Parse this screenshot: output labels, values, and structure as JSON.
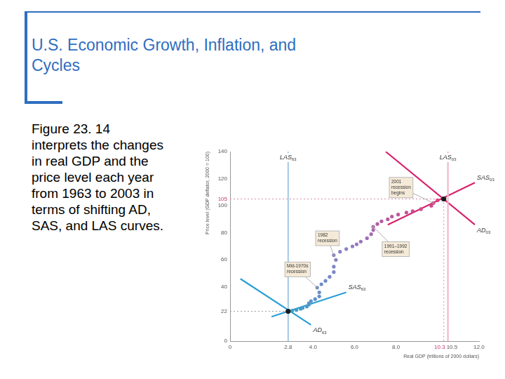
{
  "slide": {
    "title": "U.S. Economic Growth, Inflation, and Cycles",
    "body": "Figure 23. 14 interprets the changes in real GDP and the price level each year from 1963 to 2003 in terms of shifting AD, SAS, and LAS curves."
  },
  "chart_data": {
    "type": "scatter",
    "xlabel": "Real GDP (trillions of 2000 dollars)",
    "ylabel": "Price level (GDP deflator, 2000 = 100)",
    "xlim": [
      0,
      12
    ],
    "xticks": [
      0,
      2.8,
      {
        "value": 4,
        "label": "4.0"
      },
      {
        "value": 6,
        "label": "6.0"
      },
      {
        "value": 8,
        "label": "8.0"
      },
      10.3,
      10.5,
      {
        "value": 12,
        "label": "12.0"
      }
    ],
    "ylim": [
      0,
      140
    ],
    "yticks": [
      0,
      22,
      40,
      60,
      80,
      100,
      105,
      120,
      140
    ],
    "grid": false,
    "series": [
      {
        "name": "LAS63",
        "type": "line",
        "color": "#a9cde8",
        "x": [
          2.8,
          2.8
        ],
        "values": [
          0,
          140
        ]
      },
      {
        "name": "LAS03",
        "type": "line",
        "color": "#f2b6cc",
        "x": [
          10.5,
          10.5
        ],
        "values": [
          0,
          140
        ]
      },
      {
        "name": "AD63",
        "type": "line",
        "color": "#2a9fd6",
        "x": [
          0.5,
          3.9
        ],
        "values": [
          46,
          12
        ]
      },
      {
        "name": "SAS63",
        "type": "line",
        "color": "#2a9fd6",
        "x": [
          2.0,
          5.6
        ],
        "values": [
          18,
          36
        ]
      },
      {
        "name": "AD03",
        "type": "line",
        "color": "#d6246e",
        "x": [
          7.5,
          11.8
        ],
        "values": [
          140,
          86
        ]
      },
      {
        "name": "SAS03",
        "type": "line",
        "color": "#d6246e",
        "x": [
          7.6,
          11.8
        ],
        "values": [
          86,
          117
        ]
      },
      {
        "type": "scatter",
        "marker": "circle",
        "x": [
          2.8,
          3.0,
          3.2,
          3.4,
          3.5,
          3.7,
          3.8,
          3.8,
          3.9,
          4.1,
          4.3,
          4.3,
          4.2,
          4.4,
          4.6,
          4.8,
          5.0,
          5.0,
          5.1,
          5.0,
          5.3,
          5.6,
          5.9,
          6.1,
          6.3,
          6.6,
          6.8,
          6.9,
          6.9,
          7.1,
          7.3,
          7.6,
          7.8,
          8.1,
          8.5,
          8.8,
          9.2,
          9.7,
          9.8,
          10.0,
          10.3
        ],
        "values": [
          22,
          22.5,
          23,
          23.8,
          24.5,
          25.5,
          27,
          28,
          29.5,
          31,
          33,
          36,
          39.5,
          42,
          44.5,
          47.5,
          51,
          55,
          60,
          63.5,
          66,
          68,
          70,
          71.5,
          73.5,
          76,
          79,
          82,
          84.5,
          86.5,
          88.5,
          90,
          92,
          93.5,
          95,
          96,
          97.5,
          100,
          102,
          104,
          105
        ],
        "colors": [
          "#1a1a1a",
          "#3e9fc8",
          "#429dc8",
          "#469cc8",
          "#4b9ac8",
          "#4f98c8",
          "#5397c8",
          "#5795c8",
          "#5b94c8",
          "#5f92c8",
          "#6391c8",
          "#678fc8",
          "#6b8ec8",
          "#6f8cc8",
          "#738bc8",
          "#7789c8",
          "#7b88c8",
          "#7f86c8",
          "#8385c8",
          "#8883c8",
          "#8c82c8",
          "#907ec3",
          "#947bbf",
          "#9877bc",
          "#9c74b8",
          "#a070b5",
          "#a46db1",
          "#a869ae",
          "#ac66aa",
          "#b062a7",
          "#b45fa3",
          "#b85ba0",
          "#bc589c",
          "#c05499",
          "#c45195",
          "#c84d92",
          "#cc4a8e",
          "#d0468b",
          "#d44387",
          "#d83f84",
          "#1a1a1a"
        ]
      }
    ],
    "annotations": [
      {
        "text": "2001 recession begins",
        "x": 9.8,
        "y": 102
      },
      {
        "text": "1982 recession",
        "x": 5.0,
        "y": 63.5
      },
      {
        "text": "1991–1992 recession",
        "x": 6.9,
        "y": 84.5
      },
      {
        "text": "Mid-1970s recession",
        "x": 4.2,
        "y": 39.5
      }
    ]
  }
}
